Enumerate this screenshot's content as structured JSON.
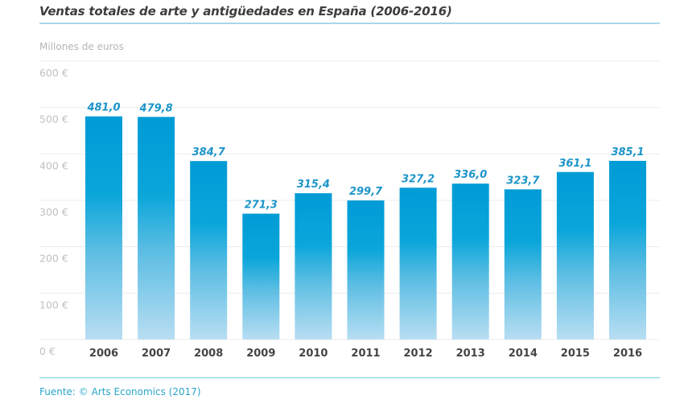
{
  "chart_data": {
    "type": "bar",
    "title": "Ventas totales de arte y antigüedades en España (2006-2016)",
    "ylabel": "Millones de euros",
    "xlabel": "",
    "categories": [
      "2006",
      "2007",
      "2008",
      "2009",
      "2010",
      "2011",
      "2012",
      "2013",
      "2014",
      "2015",
      "2016"
    ],
    "values": [
      481.0,
      479.8,
      384.7,
      271.3,
      315.4,
      299.7,
      327.2,
      336.0,
      323.7,
      361.1,
      385.1
    ],
    "value_labels": [
      "481,0",
      "479,8",
      "384,7",
      "271,3",
      "315,4",
      "299,7",
      "327,2",
      "336,0",
      "323,7",
      "361,1",
      "385,1"
    ],
    "ylim": [
      0,
      600
    ],
    "yticks": [
      0,
      100,
      200,
      300,
      400,
      500,
      600
    ],
    "ytick_labels": [
      "0 €",
      "100 €",
      "200 €",
      "300 €",
      "400 €",
      "500 €",
      "600 €"
    ],
    "grid": true,
    "legend": "none",
    "source": "Fuente: © Arts Economics (2017)",
    "colors": {
      "bar_top": "#009bd6",
      "bar_bottom": "#b8def2",
      "label": "#1d95c9",
      "rule": "#6fd0ea"
    }
  }
}
